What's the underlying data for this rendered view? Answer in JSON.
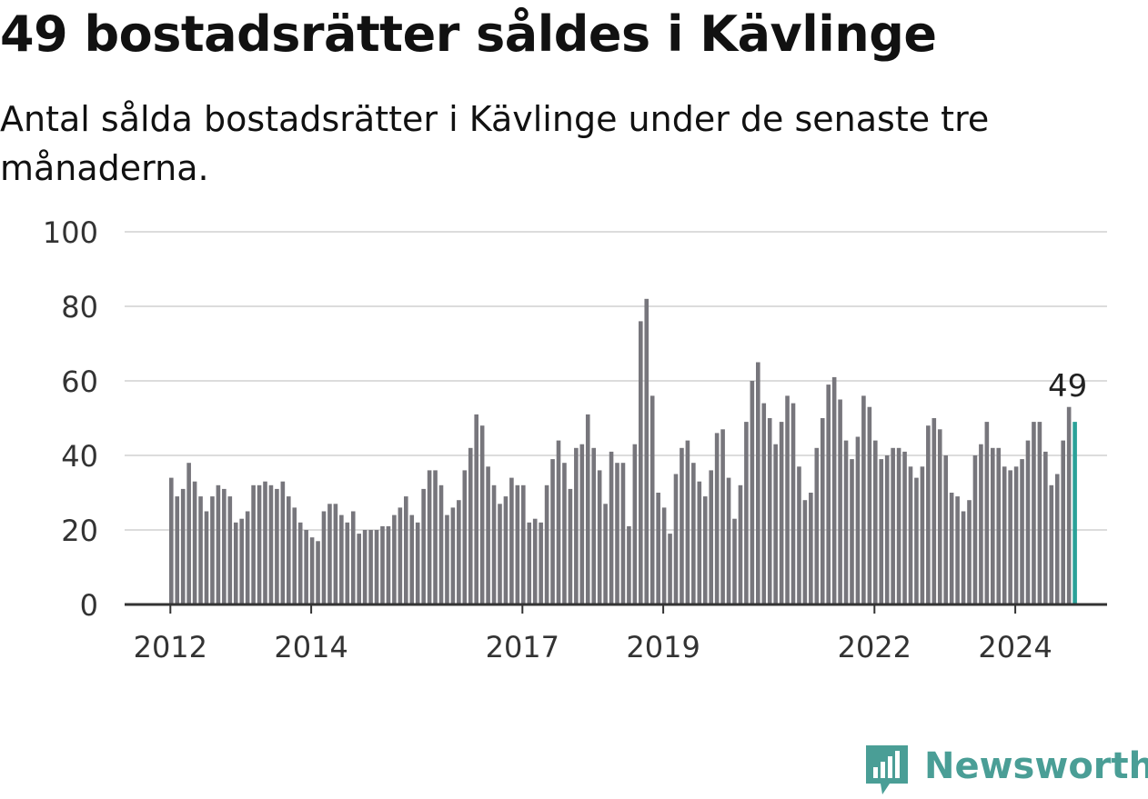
{
  "header": {
    "title": "49 bostadsrätter såldes i Kävlinge",
    "subtitle": "Antal sålda bostadsrätter i Kävlinge under de senaste tre månaderna."
  },
  "brand": {
    "name": "Newsworthy",
    "color": "#4a9e96",
    "icon": "newsworthy-logo-icon"
  },
  "chart_data": {
    "type": "bar",
    "title": "49 bostadsrätter såldes i Kävlinge",
    "subtitle": "Antal sålda bostadsrätter i Kävlinge under de senaste tre månaderna.",
    "xlabel": "",
    "ylabel": "",
    "ylim": [
      0,
      100
    ],
    "yticks": [
      0,
      20,
      40,
      60,
      80,
      100
    ],
    "xtick_labels": [
      "2012",
      "2014",
      "2017",
      "2019",
      "2022",
      "2024"
    ],
    "grid": true,
    "bar_color": "#77767c",
    "highlight_color": "#2aa198",
    "highlight_label": "49",
    "series": [
      {
        "values": [
          34,
          29,
          31,
          38,
          33,
          29,
          25,
          29,
          32,
          31,
          29,
          22,
          23,
          25,
          32,
          32,
          33,
          32,
          31,
          33,
          29,
          26,
          22,
          20,
          18,
          17,
          25,
          27,
          27,
          24,
          22,
          25,
          19,
          20,
          20,
          20,
          21,
          21,
          24,
          26,
          29,
          24,
          22,
          31,
          36,
          36,
          32,
          24,
          26,
          28,
          36,
          42,
          51,
          48,
          37,
          32,
          27,
          29,
          34,
          32,
          32,
          22,
          23,
          22,
          32,
          39,
          44,
          38,
          31,
          42,
          43,
          51,
          42,
          36,
          27,
          41,
          38,
          38,
          21,
          43,
          76,
          82,
          56,
          30,
          26,
          19,
          35,
          42,
          44,
          38,
          33,
          29,
          36,
          46,
          47,
          34,
          23,
          32,
          49,
          60,
          65,
          54,
          50,
          43,
          49,
          56,
          54,
          37,
          28,
          30,
          42,
          50,
          59,
          61,
          55,
          44,
          39,
          45,
          56,
          53,
          44,
          39,
          40,
          42,
          42,
          41,
          37,
          34,
          37,
          48,
          50,
          47,
          40,
          30,
          29,
          25,
          28,
          40,
          43,
          49,
          42,
          42,
          37,
          36,
          37,
          39,
          44,
          49,
          49,
          41,
          32,
          35,
          44,
          53,
          49
        ]
      }
    ]
  }
}
